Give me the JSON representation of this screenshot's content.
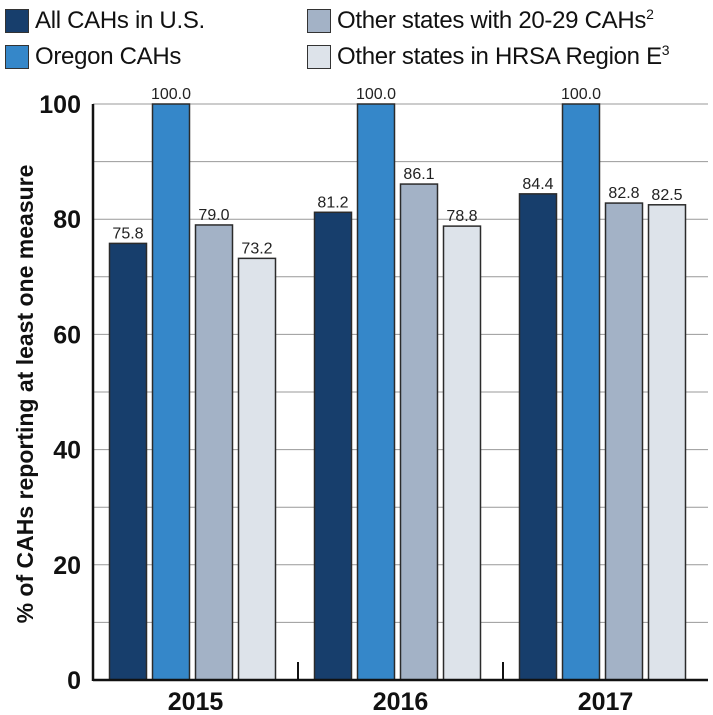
{
  "legend": {
    "items": [
      {
        "label": "All CAHs in U.S.",
        "sup": "",
        "color": "#173e6c"
      },
      {
        "label": "Oregon CAHs",
        "sup": "",
        "color": "#3587c9"
      },
      {
        "label": "Other states with 20-29 CAHs",
        "sup": "2",
        "color": "#a3b2c6"
      },
      {
        "label": "Other states in HRSA Region E",
        "sup": "3",
        "color": "#dde3ea"
      }
    ]
  },
  "chart_data": {
    "type": "bar",
    "categories": [
      "2015",
      "2016",
      "2017"
    ],
    "series": [
      {
        "name": "All CAHs in U.S.",
        "values": [
          75.8,
          81.2,
          84.4
        ],
        "labels": [
          "75.8",
          "81.2",
          "84.4"
        ],
        "color": "#173e6c"
      },
      {
        "name": "Oregon CAHs",
        "values": [
          100.0,
          100.0,
          100.0
        ],
        "labels": [
          "100.0",
          "100.0",
          "100.0"
        ],
        "color": "#3587c9"
      },
      {
        "name": "Other states with 20-29 CAHs",
        "values": [
          79.0,
          86.1,
          82.8
        ],
        "labels": [
          "79.0",
          "86.1",
          "82.8"
        ],
        "color": "#a3b2c6"
      },
      {
        "name": "Other states in HRSA Region E",
        "values": [
          73.2,
          78.8,
          82.5
        ],
        "labels": [
          "73.2",
          "78.8",
          "82.5"
        ],
        "color": "#dde3ea"
      }
    ],
    "ylabel": "% of CAHs reporting at least one measure",
    "xlabel": "",
    "ylim": [
      0,
      100
    ],
    "yticks": [
      0,
      20,
      40,
      60,
      80,
      100
    ],
    "ytick_labels": [
      "0",
      "20",
      "40",
      "60",
      "80",
      "100"
    ],
    "minor_gridlines": [
      10,
      30,
      50,
      70,
      90
    ],
    "grid": true,
    "legend_position": "top"
  }
}
